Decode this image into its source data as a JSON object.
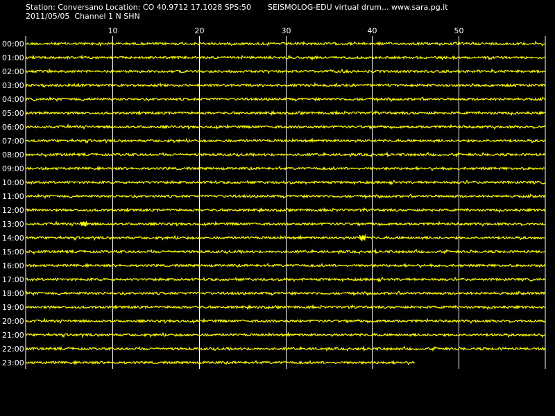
{
  "header": {
    "station_line": "Station: Conversano Location: CO 40.9712 17.1028 SPS:50",
    "date_line": "2011/05/05  Channel 1 N SHN",
    "app_line": "SEISMOLOG-EDU virtual drum... www.sara.pg.it"
  },
  "colors": {
    "background": "#000000",
    "trace": "#ffff00",
    "grid": "#ffffff",
    "text": "#ffffff"
  },
  "chart_data": {
    "type": "line",
    "title": "",
    "xlabel": "",
    "ylabel": "",
    "xlim": [
      0,
      60
    ],
    "x_ticks": [
      10,
      20,
      30,
      40,
      50
    ],
    "x_tick_labels": [
      "10",
      "20",
      "30",
      "40",
      "50"
    ],
    "grid": true,
    "rows": [
      {
        "label": "00:00",
        "end_minute": 60
      },
      {
        "label": "01:00",
        "end_minute": 60
      },
      {
        "label": "02:00",
        "end_minute": 60
      },
      {
        "label": "03:00",
        "end_minute": 60
      },
      {
        "label": "04:00",
        "end_minute": 60
      },
      {
        "label": "05:00",
        "end_minute": 60
      },
      {
        "label": "06:00",
        "end_minute": 60
      },
      {
        "label": "07:00",
        "end_minute": 60
      },
      {
        "label": "08:00",
        "end_minute": 60
      },
      {
        "label": "09:00",
        "end_minute": 60
      },
      {
        "label": "10:00",
        "end_minute": 60
      },
      {
        "label": "11:00",
        "end_minute": 60
      },
      {
        "label": "12:00",
        "end_minute": 60
      },
      {
        "label": "13:00",
        "end_minute": 60
      },
      {
        "label": "14:00",
        "end_minute": 60
      },
      {
        "label": "15:00",
        "end_minute": 60
      },
      {
        "label": "16:00",
        "end_minute": 60
      },
      {
        "label": "17:00",
        "end_minute": 60
      },
      {
        "label": "18:00",
        "end_minute": 60
      },
      {
        "label": "19:00",
        "end_minute": 60
      },
      {
        "label": "20:00",
        "end_minute": 60
      },
      {
        "label": "21:00",
        "end_minute": 60
      },
      {
        "label": "22:00",
        "end_minute": 60
      },
      {
        "label": "23:00",
        "end_minute": 45
      }
    ],
    "events": [
      {
        "row": "13:00",
        "minute": 6.7
      },
      {
        "row": "14:00",
        "minute": 38.9
      }
    ]
  }
}
